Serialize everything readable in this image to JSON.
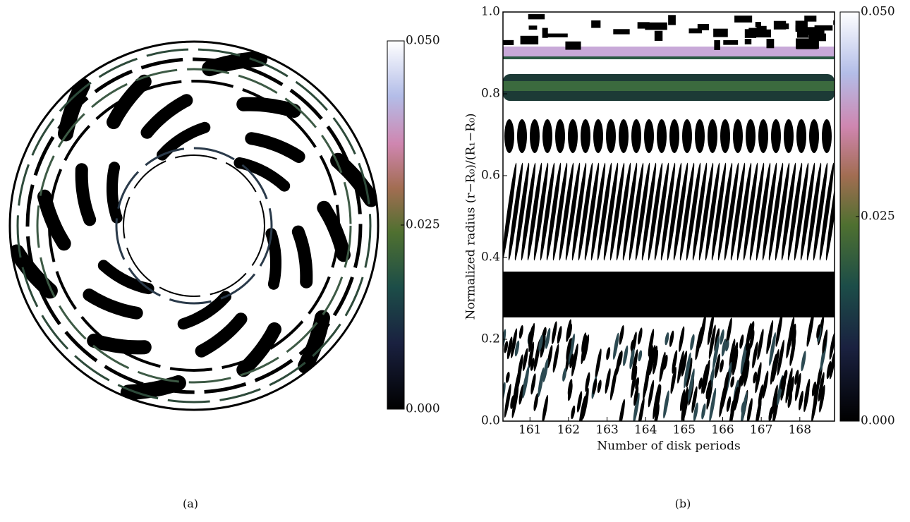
{
  "chart_data": [
    {
      "type": "image",
      "caption": "(a)",
      "clim": [
        0,
        0.05
      ],
      "cticks": [
        {
          "value": 0,
          "label": "0.000"
        },
        {
          "value": 0.025,
          "label": "0.025"
        },
        {
          "value": 0.05,
          "label": "0.050"
        }
      ]
    },
    {
      "type": "heatmap",
      "caption": "(b)",
      "xlabel": "Number of disk periods",
      "ylabel": "Normalized radius (r−R₀)/(R₁−R₀)",
      "xlim": [
        160.3,
        168.9
      ],
      "xticks": [
        161,
        162,
        163,
        164,
        165,
        166,
        167,
        168
      ],
      "ylim": [
        0,
        1
      ],
      "yticks": [
        {
          "value": 0,
          "label": "0.0"
        },
        {
          "value": 0.2,
          "label": "0.2"
        },
        {
          "value": 0.4,
          "label": "0.4"
        },
        {
          "value": 0.6,
          "label": "0.6"
        },
        {
          "value": 0.8,
          "label": "0.8"
        },
        {
          "value": 1,
          "label": "1.0"
        }
      ],
      "clim": [
        0,
        0.05
      ],
      "cticks": [
        {
          "value": 0,
          "label": "0.000"
        },
        {
          "value": 0.025,
          "label": "0.025"
        },
        {
          "value": 0.05,
          "label": "0.050"
        }
      ]
    }
  ]
}
